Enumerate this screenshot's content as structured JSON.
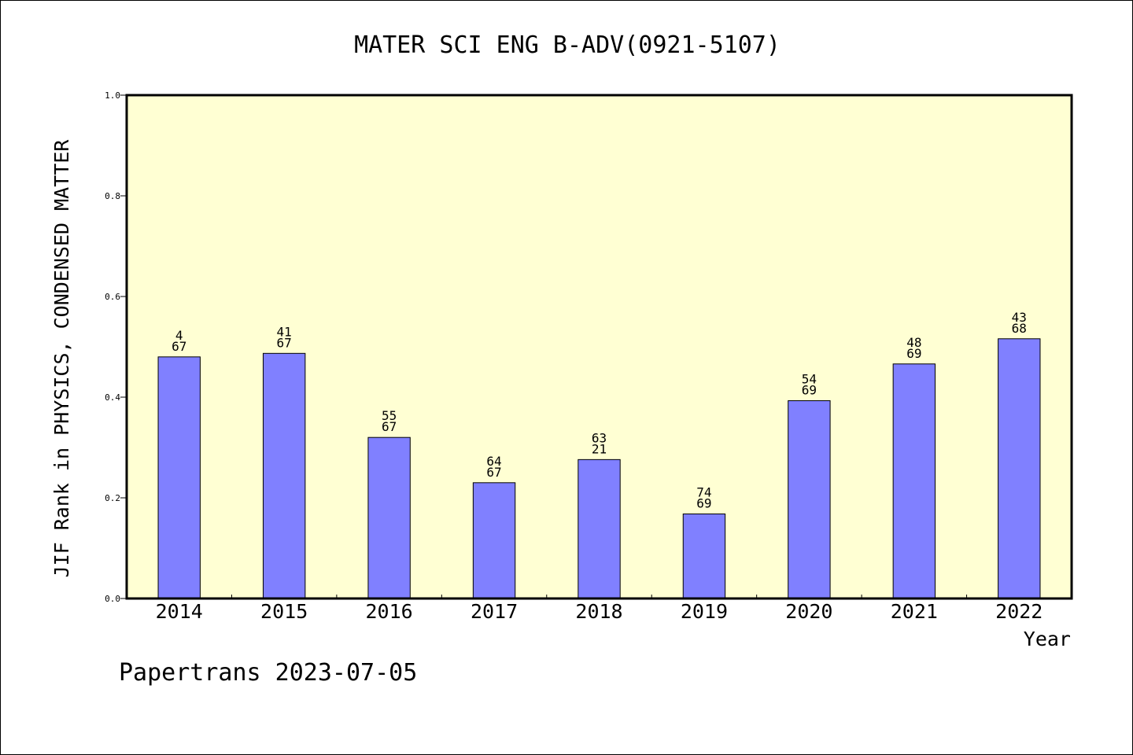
{
  "chart_data": {
    "type": "bar",
    "title": "MATER SCI ENG B-ADV(0921-5107)",
    "ylabel": "JIF Rank in PHYSICS, CONDENSED MATTER",
    "xlabel": "Year",
    "categories": [
      "2014",
      "2015",
      "2016",
      "2017",
      "2018",
      "2019",
      "2020",
      "2021",
      "2022"
    ],
    "values": [
      0.48,
      0.487,
      0.32,
      0.23,
      0.276,
      0.168,
      0.393,
      0.466,
      0.516
    ],
    "bar_labels": [
      [
        "4",
        "67"
      ],
      [
        "41",
        "67"
      ],
      [
        "55",
        "67"
      ],
      [
        "64",
        "67"
      ],
      [
        "63",
        "21"
      ],
      [
        "74",
        "69"
      ],
      [
        "54",
        "69"
      ],
      [
        "48",
        "69"
      ],
      [
        "43",
        "68"
      ]
    ],
    "ylim": [
      0,
      1.0
    ],
    "yticks": [
      "0.0",
      "0.2",
      "0.4",
      "0.6",
      "0.8",
      "1.0"
    ],
    "grid": false,
    "colors": {
      "plot_background": "#ffffd3",
      "bar_fill": "#8080ff",
      "bar_edge": "#000000"
    }
  },
  "footer": "Papertrans 2023-07-05"
}
